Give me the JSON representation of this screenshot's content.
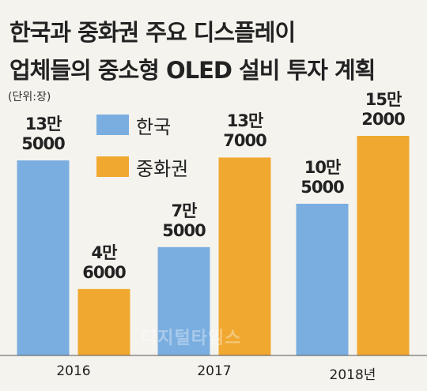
{
  "chart_data": {
    "type": "bar",
    "title": "한국과 중화권 주요 디스플레이",
    "subtitle": "업체들의 중소형 OLED 설비 투자 계획",
    "unit": "(단위:장)",
    "watermark": "디지털타임스",
    "categories": [
      "2016",
      "2017",
      "2018년"
    ],
    "series": [
      {
        "name": "한국",
        "color": "#7aaee0",
        "values": [
          135000,
          75000,
          105000
        ],
        "value_labels": [
          "13만\n5000",
          "7만\n5000",
          "10만\n5000"
        ]
      },
      {
        "name": "중화권",
        "color": "#f0a830",
        "values": [
          46000,
          137000,
          152000
        ],
        "value_labels": [
          "4만\n6000",
          "13만\n7000",
          "15만\n2000"
        ]
      }
    ]
  }
}
